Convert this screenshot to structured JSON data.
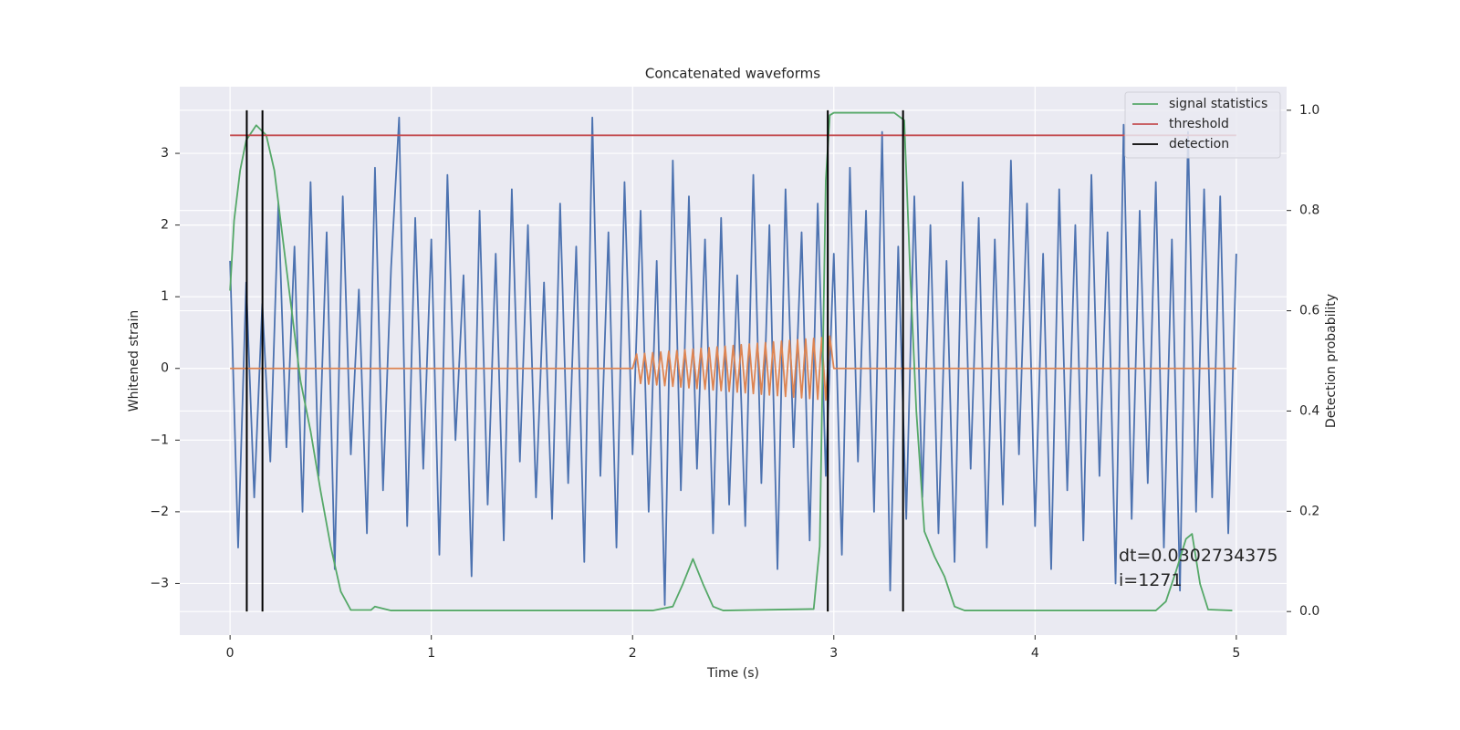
{
  "chart_data": {
    "type": "line",
    "title": "Concatenated waveforms",
    "xlabel": "Time (s)",
    "ylabel": "Whitened strain",
    "y2label": "Detection probability",
    "xlim": [
      -0.25,
      5.25
    ],
    "ylim": [
      -3.72,
      3.93
    ],
    "y2lim": [
      -0.047,
      1.047
    ],
    "xticks": [
      0,
      1,
      2,
      3,
      4,
      5
    ],
    "yticks": [
      {
        "value": -3,
        "label": "−3"
      },
      {
        "value": -2,
        "label": "−2"
      },
      {
        "value": -1,
        "label": "−1"
      },
      0,
      1,
      2,
      3
    ],
    "y2ticks": [
      {
        "value": 0,
        "label": "0.0"
      },
      {
        "value": 0.2,
        "label": "0.2"
      },
      {
        "value": 0.4,
        "label": "0.4"
      },
      {
        "value": 0.6,
        "label": "0.6"
      },
      {
        "value": 0.8,
        "label": "0.8"
      },
      {
        "value": 1,
        "label": "1.0"
      }
    ],
    "grid": true,
    "legend": "upper right",
    "annotation": [
      "dt=0.0302734375",
      " i=1271"
    ],
    "series": [
      {
        "color": "#4c72b0",
        "x": [
          0,
          0.04,
          0.08,
          0.12,
          0.16,
          0.2,
          0.24,
          0.28,
          0.32,
          0.36,
          0.4,
          0.44,
          0.48,
          0.52,
          0.56,
          0.6,
          0.64,
          0.68,
          0.72,
          0.76,
          0.8,
          0.84,
          0.88,
          0.92,
          0.96,
          1,
          1.04,
          1.08,
          1.12,
          1.16,
          1.2,
          1.24,
          1.28,
          1.32,
          1.36,
          1.4,
          1.44,
          1.48,
          1.52,
          1.56,
          1.6,
          1.64,
          1.68,
          1.72,
          1.76,
          1.8,
          1.84,
          1.88,
          1.92,
          1.96,
          2,
          2.04,
          2.08,
          2.12,
          2.16,
          2.2,
          2.24,
          2.28,
          2.32,
          2.36,
          2.4,
          2.44,
          2.48,
          2.52,
          2.56,
          2.6,
          2.64,
          2.68,
          2.72,
          2.76,
          2.8,
          2.84,
          2.88,
          2.92,
          2.96,
          3,
          3.04,
          3.08,
          3.12,
          3.16,
          3.2,
          3.24,
          3.28,
          3.32,
          3.36,
          3.4,
          3.44,
          3.48,
          3.52,
          3.56,
          3.6,
          3.64,
          3.68,
          3.72,
          3.76,
          3.8,
          3.84,
          3.88,
          3.92,
          3.96,
          4,
          4.04,
          4.08,
          4.12,
          4.16,
          4.2,
          4.24,
          4.28,
          4.32,
          4.36,
          4.4,
          4.44,
          4.48,
          4.52,
          4.56,
          4.6,
          4.64,
          4.68,
          4.72,
          4.76,
          4.8,
          4.84,
          4.88,
          4.92,
          4.96,
          5
        ],
        "values": [
          1.5,
          -2.5,
          1.2,
          -1.8,
          0.9,
          -1.3,
          2.3,
          -1.1,
          1.7,
          -2.0,
          2.6,
          -1.5,
          1.9,
          -2.8,
          2.4,
          -1.2,
          1.1,
          -2.3,
          2.8,
          -1.7,
          1.4,
          3.5,
          -2.2,
          2.1,
          -1.4,
          1.8,
          -2.6,
          2.7,
          -1.0,
          1.3,
          -2.9,
          2.2,
          -1.9,
          1.6,
          -2.4,
          2.5,
          -1.3,
          2.0,
          -1.8,
          1.2,
          -2.1,
          2.3,
          -1.6,
          1.7,
          -2.7,
          3.5,
          -1.5,
          1.9,
          -2.5,
          2.6,
          -1.2,
          2.2,
          -2.0,
          1.5,
          -3.3,
          2.9,
          -1.7,
          2.4,
          -1.4,
          1.8,
          -2.3,
          2.1,
          -1.9,
          1.3,
          -2.2,
          2.7,
          -1.6,
          2.0,
          -2.8,
          2.5,
          -1.1,
          1.9,
          -2.4,
          2.3,
          -1.5,
          1.6,
          -2.6,
          2.8,
          -1.3,
          2.2,
          -2.0,
          3.3,
          -3.1,
          1.7,
          -2.1,
          2.4,
          -1.8,
          2.0,
          -2.3,
          1.5,
          -2.7,
          2.6,
          -1.4,
          2.1,
          -2.5,
          1.8,
          -1.9,
          2.9,
          -1.2,
          2.3,
          -2.2,
          1.6,
          -2.8,
          2.5,
          -1.7,
          2.0,
          -2.4,
          2.7,
          -1.5,
          1.9,
          -3.0,
          3.4,
          -2.1,
          2.2,
          -1.6,
          2.6,
          -2.5,
          1.8,
          -3.1,
          3.3,
          -2.0,
          2.5,
          -1.8,
          2.4,
          -2.3,
          1.6
        ]
      },
      {
        "color": "#dd8452",
        "x": [
          0,
          2,
          2.02,
          2.04,
          2.06,
          2.08,
          2.1,
          2.12,
          2.14,
          2.16,
          2.18,
          2.2,
          2.22,
          2.24,
          2.26,
          2.28,
          2.3,
          2.32,
          2.34,
          2.36,
          2.38,
          2.4,
          2.42,
          2.44,
          2.46,
          2.48,
          2.5,
          2.52,
          2.54,
          2.56,
          2.58,
          2.6,
          2.62,
          2.64,
          2.66,
          2.68,
          2.7,
          2.72,
          2.74,
          2.76,
          2.78,
          2.8,
          2.82,
          2.84,
          2.86,
          2.88,
          2.9,
          2.92,
          2.94,
          2.96,
          2.98,
          3,
          5
        ],
        "values": [
          0,
          0,
          0.2,
          -0.21,
          0.21,
          -0.22,
          0.22,
          -0.23,
          0.23,
          -0.24,
          0.24,
          -0.25,
          0.25,
          -0.26,
          0.26,
          -0.27,
          0.27,
          -0.28,
          0.28,
          -0.29,
          0.29,
          -0.3,
          0.3,
          -0.31,
          0.31,
          -0.32,
          0.32,
          -0.33,
          0.33,
          -0.34,
          0.34,
          -0.35,
          0.35,
          -0.36,
          0.36,
          -0.37,
          0.37,
          -0.38,
          0.38,
          -0.39,
          0.39,
          -0.4,
          0.4,
          -0.41,
          0.41,
          -0.42,
          0.42,
          -0.43,
          0.43,
          -0.44,
          0.45,
          0,
          0
        ]
      },
      {
        "name": "signal statistics",
        "color": "#55a868",
        "axis": "y2",
        "x": [
          0,
          0.02,
          0.05,
          0.08,
          0.13,
          0.18,
          0.22,
          0.26,
          0.3,
          0.35,
          0.4,
          0.45,
          0.5,
          0.55,
          0.6,
          0.7,
          0.72,
          0.8,
          1.0,
          2.1,
          2.2,
          2.25,
          2.3,
          2.35,
          2.4,
          2.45,
          2.9,
          2.93,
          2.96,
          2.98,
          3.0,
          3.3,
          3.35,
          3.38,
          3.41,
          3.45,
          3.5,
          3.55,
          3.6,
          3.65,
          4.6,
          4.65,
          4.7,
          4.75,
          4.78,
          4.82,
          4.86,
          4.98
        ],
        "values": [
          0.64,
          0.78,
          0.88,
          0.94,
          0.97,
          0.95,
          0.88,
          0.75,
          0.62,
          0.46,
          0.36,
          0.24,
          0.13,
          0.04,
          0.003,
          0.003,
          0.01,
          0.002,
          0.002,
          0.002,
          0.01,
          0.055,
          0.105,
          0.055,
          0.01,
          0.002,
          0.005,
          0.13,
          0.86,
          0.99,
          0.995,
          0.995,
          0.98,
          0.67,
          0.4,
          0.16,
          0.11,
          0.07,
          0.01,
          0.002,
          0.002,
          0.02,
          0.08,
          0.145,
          0.155,
          0.055,
          0.004,
          0.002
        ]
      },
      {
        "name": "threshold",
        "color": "#c44e52",
        "axis": "y2",
        "x": [
          0,
          5
        ],
        "values": [
          0.95,
          0.95
        ]
      },
      {
        "name": "detection",
        "color": "#000000",
        "axis": "y2",
        "style": "vlines",
        "x": [
          0.083,
          0.161,
          2.97,
          3.344
        ],
        "ymin": [
          0,
          0,
          0,
          0
        ],
        "ymax": [
          1,
          1,
          1,
          1
        ]
      }
    ]
  }
}
